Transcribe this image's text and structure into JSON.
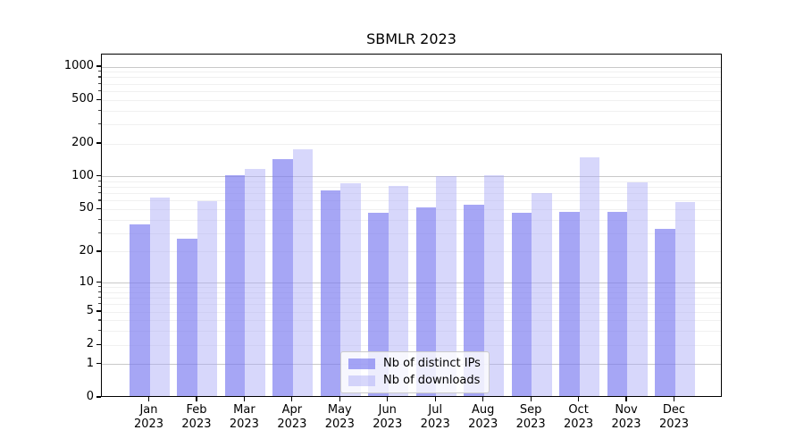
{
  "chart_data": {
    "type": "bar",
    "title": "SBMLR 2023",
    "categories": [
      "Jan",
      "Feb",
      "Mar",
      "Apr",
      "May",
      "Jun",
      "Jul",
      "Aug",
      "Sep",
      "Oct",
      "Nov",
      "Dec"
    ],
    "year_label": "2023",
    "series": [
      {
        "key": "distinct-ips",
        "name": "Nb of distinct IPs",
        "color": "rgba(120,120,240,0.66)",
        "values": [
          35,
          26,
          100,
          140,
          73,
          45,
          50,
          53,
          45,
          46,
          46,
          32
        ]
      },
      {
        "key": "downloads",
        "name": "Nb of downloads",
        "color": "rgba(171,171,247,0.47)",
        "values": [
          62,
          58,
          114,
          172,
          84,
          79,
          98,
          100,
          69,
          145,
          85,
          57
        ]
      }
    ],
    "yscale": "log1p",
    "ylim": [
      0,
      1300
    ],
    "yticks": [
      0,
      1,
      2,
      5,
      10,
      20,
      50,
      100,
      200,
      500,
      1000
    ],
    "minor_gridlines": [
      2,
      3,
      4,
      5,
      6,
      7,
      8,
      9,
      20,
      30,
      40,
      50,
      60,
      70,
      80,
      90,
      200,
      300,
      400,
      500,
      600,
      700,
      800,
      900
    ],
    "major_gridlines": [
      1,
      10,
      100,
      1000
    ],
    "grid": true,
    "legend_position": "lower center",
    "colors": {
      "major_grid": "#c9c9c9",
      "minor_grid": "#f0f0f0",
      "spine": "#000000",
      "text": "#000000",
      "background": "#ffffff"
    }
  }
}
